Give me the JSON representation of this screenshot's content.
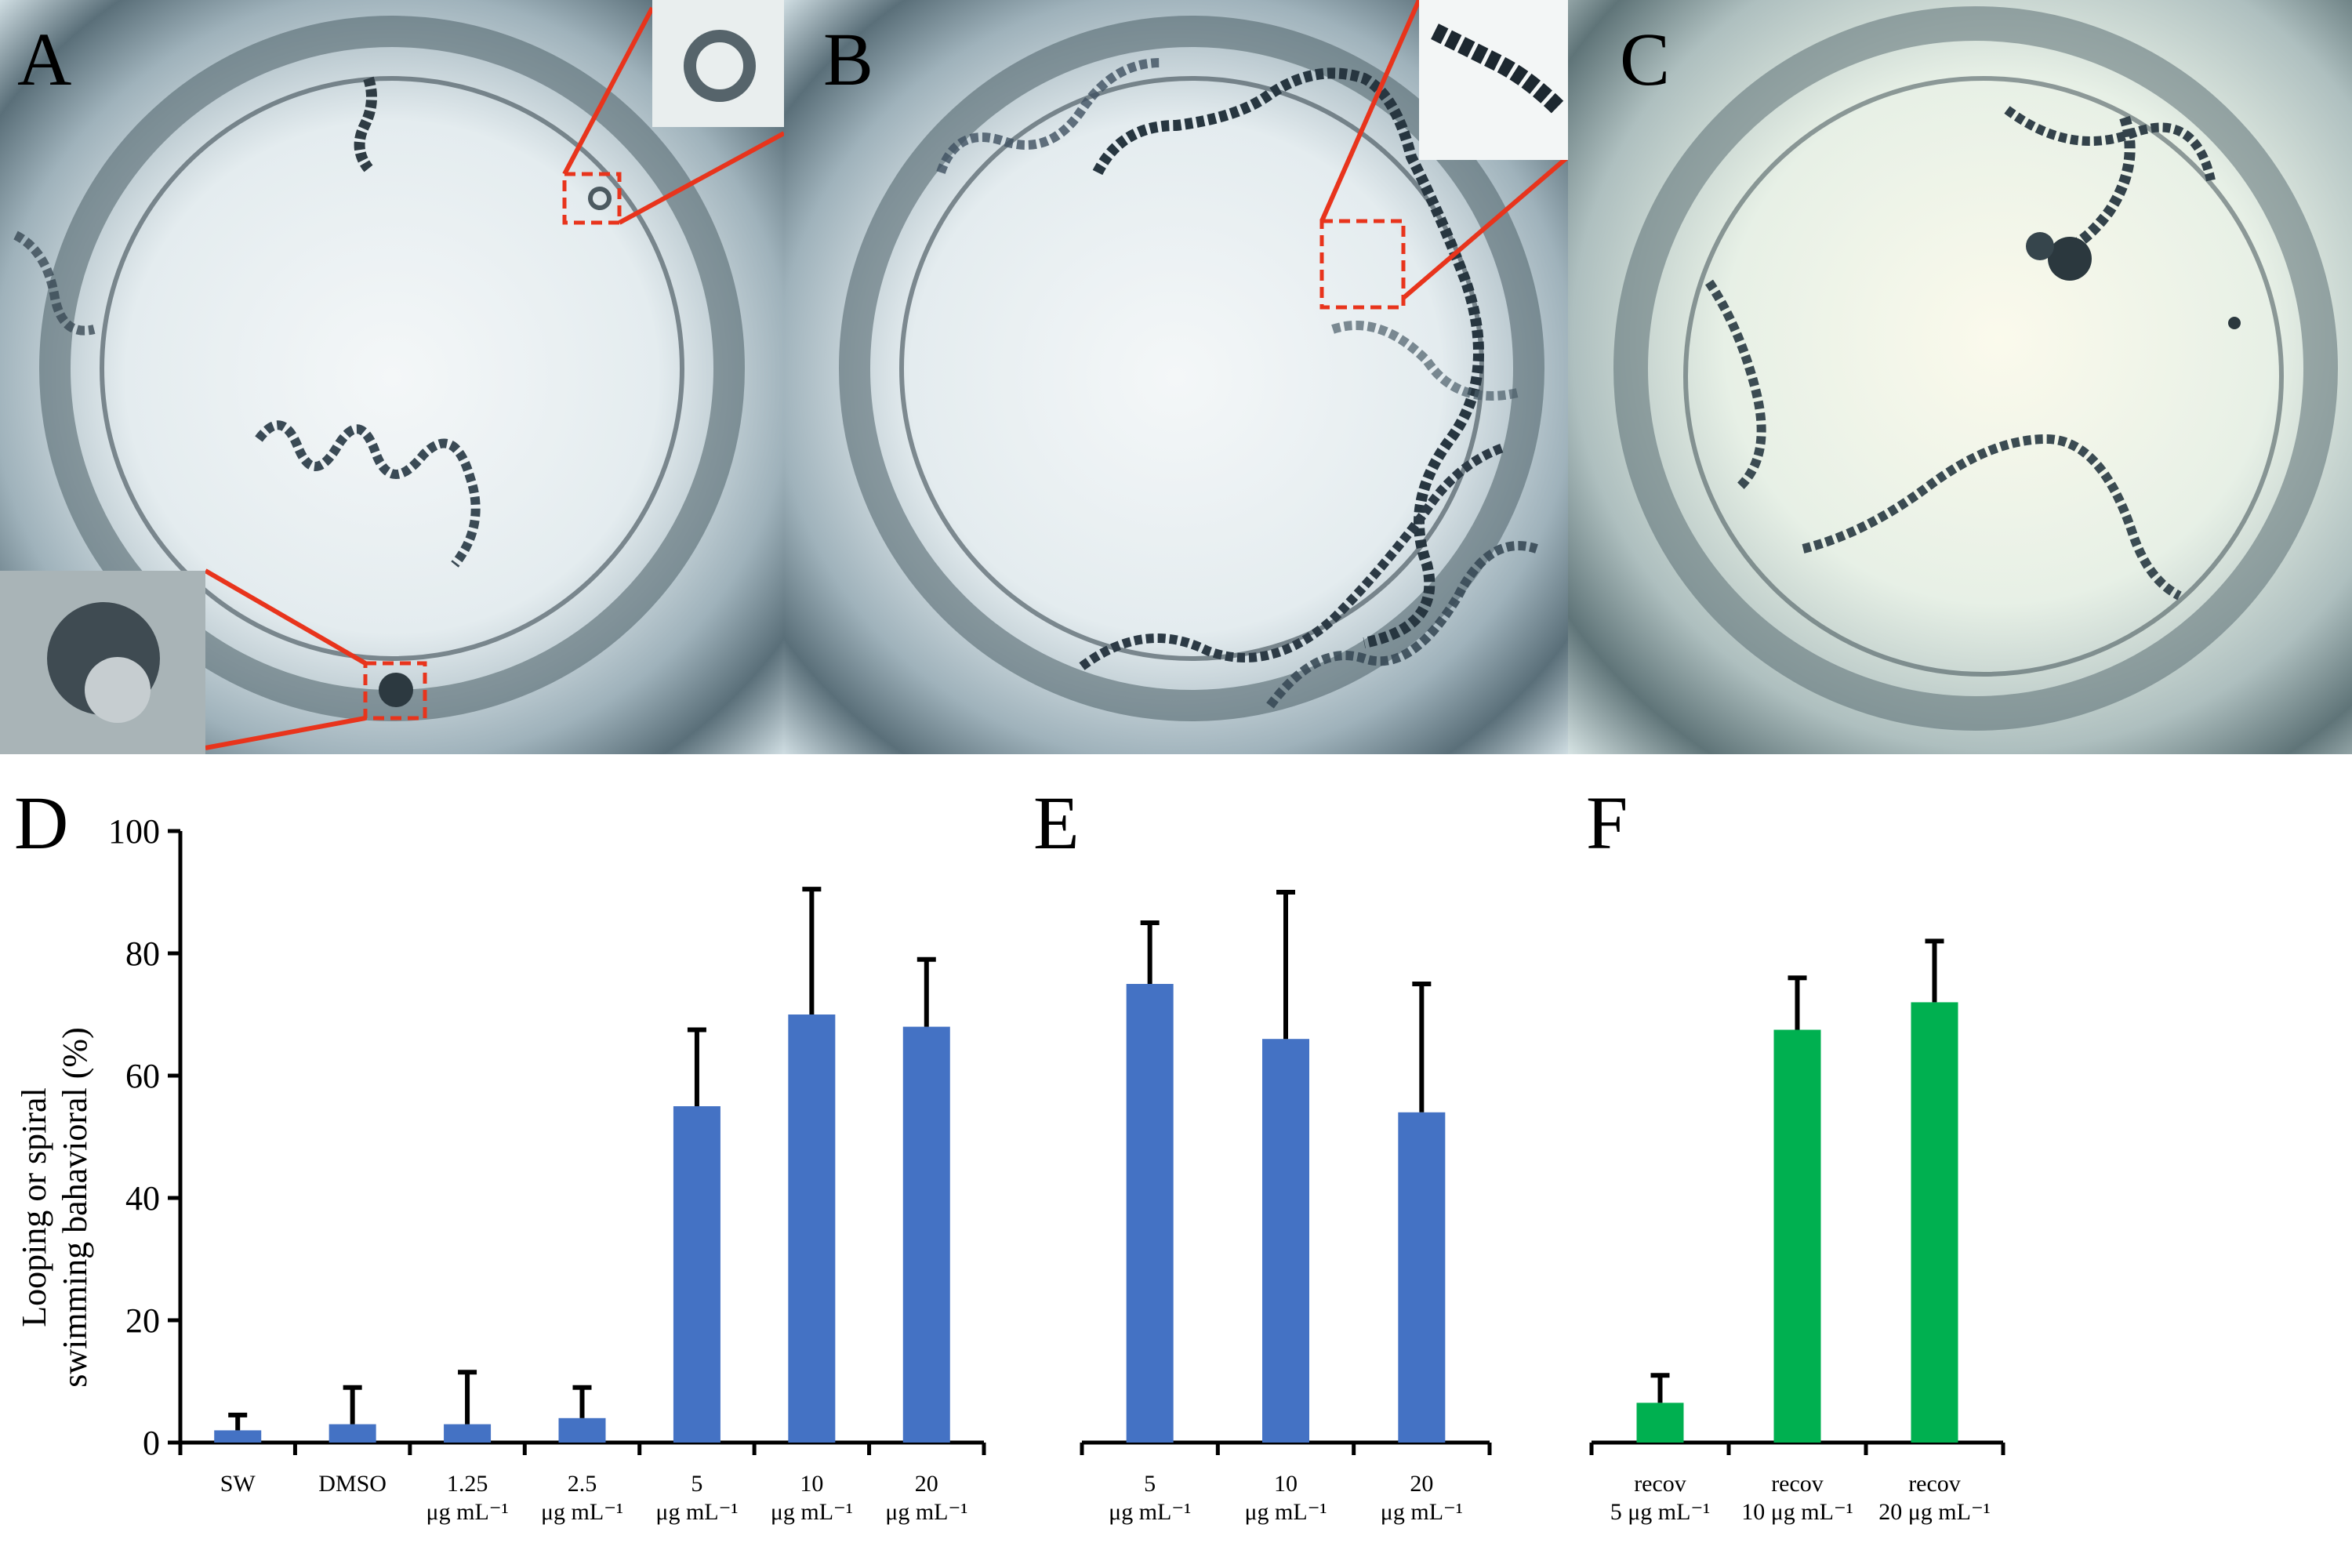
{
  "panels": {
    "a": "A",
    "b": "B",
    "c": "C",
    "d": "D",
    "e": "E",
    "f": "F"
  },
  "colors": {
    "blue": "#4472c4",
    "green": "#00b050",
    "highlight": "#e8341c"
  },
  "y_axis": {
    "label_line1": "Looping or spiral",
    "label_line2": "swimming bahavioral (%)",
    "ticks": [
      "0",
      "20",
      "40",
      "60",
      "80",
      "100"
    ]
  },
  "chart_data": [
    {
      "panel": "D",
      "type": "bar",
      "color": "#4472c4",
      "ylim": [
        0,
        100
      ],
      "categories": [
        [
          "SW"
        ],
        [
          "DMSO"
        ],
        [
          "1.25",
          "μg mL⁻¹"
        ],
        [
          "2.5",
          "μg mL⁻¹"
        ],
        [
          "5",
          "μg mL⁻¹"
        ],
        [
          "10",
          "μg mL⁻¹"
        ],
        [
          "20",
          "μg mL⁻¹"
        ]
      ],
      "values": [
        2,
        3,
        3,
        4,
        55,
        70,
        68
      ],
      "errors": [
        2.5,
        6,
        8.5,
        5,
        12.5,
        20.5,
        11
      ]
    },
    {
      "panel": "E",
      "type": "bar",
      "color": "#4472c4",
      "ylim": [
        0,
        100
      ],
      "categories": [
        [
          "5",
          "μg mL⁻¹"
        ],
        [
          "10",
          "μg mL⁻¹"
        ],
        [
          "20",
          "μg mL⁻¹"
        ]
      ],
      "values": [
        75,
        66,
        54
      ],
      "errors": [
        10,
        24,
        21
      ]
    },
    {
      "panel": "F",
      "type": "bar",
      "color": "#00b050",
      "ylim": [
        0,
        100
      ],
      "categories": [
        [
          "recov",
          "5 μg mL⁻¹"
        ],
        [
          "recov",
          "10 μg mL⁻¹"
        ],
        [
          "recov",
          "20 μg mL⁻¹"
        ]
      ],
      "values": [
        6.5,
        67.5,
        72
      ],
      "errors": [
        4.5,
        8.5,
        10
      ]
    }
  ]
}
